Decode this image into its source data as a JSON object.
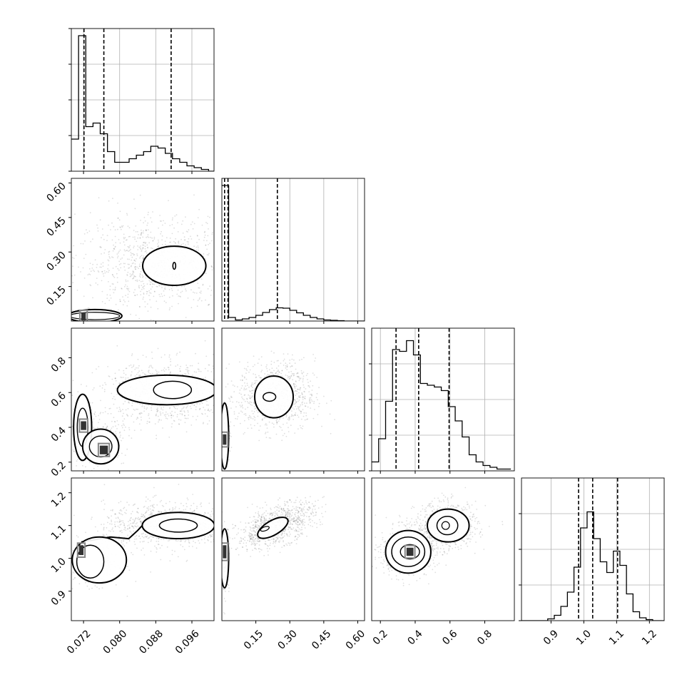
{
  "chart_data": {
    "type": "corner",
    "panels": [
      {
        "id": "hist-0",
        "kind": "hist",
        "row": 0,
        "col": 0,
        "xlim": [
          0.0693,
          0.1009
        ],
        "ylim": [
          0,
          40
        ],
        "ytick_values": [
          0,
          10,
          20,
          30,
          40
        ],
        "grid": true,
        "bin_edges": [
          0.0693,
          0.0709,
          0.0725,
          0.0741,
          0.0757,
          0.0773,
          0.0789,
          0.0805,
          0.0821,
          0.0837,
          0.0853,
          0.0869,
          0.0885,
          0.0901,
          0.0917,
          0.0933,
          0.0949,
          0.0965,
          0.0981,
          0.0997,
          0.1009
        ],
        "counts": [
          9,
          38,
          12.5,
          13.5,
          10.5,
          5.5,
          2.5,
          2.5,
          3.5,
          4.5,
          5.5,
          7,
          6.5,
          5,
          3.5,
          2.5,
          1.5,
          1,
          0.5,
          0
        ],
        "quantiles": [
          0.0721,
          0.0765,
          0.0914
        ]
      },
      {
        "id": "scatter-1-0",
        "kind": "density",
        "row": 1,
        "col": 0,
        "xlim": [
          0.0693,
          0.1009
        ],
        "ylim": [
          0.0,
          0.62
        ],
        "ytick_values": [
          0.15,
          0.3,
          0.45,
          0.6
        ],
        "ytick_labels": [
          "0.15",
          "0.30",
          "0.45",
          "0.60"
        ],
        "clusters": [
          {
            "cx": 0.088,
            "cy": 0.25,
            "sx": 0.0085,
            "sy": 0.1,
            "n": 1000
          },
          {
            "cx": 0.0735,
            "cy": 0.025,
            "sx": 0.0025,
            "sy": 0.012,
            "n": 250
          }
        ],
        "contours": [
          {
            "cx": 0.0921,
            "cy": 0.24,
            "rx": 0.007,
            "ry": 0.085,
            "w": 2
          },
          {
            "cx": 0.0921,
            "cy": 0.24,
            "rx": 0.0001,
            "ry": 0.015,
            "w": 1.6
          },
          {
            "cx": 0.0745,
            "cy": 0.022,
            "rx": 0.006,
            "ry": 0.028,
            "w": 2
          },
          {
            "cx": 0.0745,
            "cy": 0.022,
            "rx": 0.0055,
            "ry": 0.016,
            "w": 1.2
          }
        ],
        "cores": [
          {
            "x": 0.072,
            "y": 0.02,
            "w": 0.001,
            "h": 0.035
          }
        ]
      },
      {
        "id": "hist-1",
        "kind": "hist",
        "row": 1,
        "col": 1,
        "xlim": [
          0.0,
          0.63
        ],
        "ylim": [
          0,
          40
        ],
        "xtick_values": [
          0.15,
          0.3,
          0.45,
          0.6
        ],
        "ytick_values": [],
        "grid": true,
        "bin_edges": [
          0.0,
          0.03,
          0.06,
          0.09,
          0.12,
          0.15,
          0.18,
          0.21,
          0.24,
          0.27,
          0.3,
          0.33,
          0.36,
          0.39,
          0.42,
          0.45,
          0.48,
          0.51,
          0.54,
          0.57,
          0.6,
          0.63
        ],
        "counts": [
          38,
          1,
          0.3,
          0.6,
          1,
          1.6,
          2.4,
          3.2,
          3.7,
          3.6,
          3,
          2.3,
          1.6,
          1,
          0.6,
          0.3,
          0.2,
          0.1,
          0,
          0,
          0
        ],
        "quantiles": [
          0.012,
          0.027,
          0.245
        ]
      },
      {
        "id": "scatter-2-0",
        "kind": "density",
        "row": 2,
        "col": 0,
        "xlim": [
          0.0693,
          0.1009
        ],
        "ylim": [
          0.15,
          0.97
        ],
        "ytick_values": [
          0.2,
          0.4,
          0.6,
          0.8
        ],
        "ytick_labels": [
          "0.2",
          "0.4",
          "0.6",
          "0.8"
        ],
        "clusters": [
          {
            "cx": 0.0905,
            "cy": 0.6,
            "sx": 0.007,
            "sy": 0.09,
            "n": 900
          },
          {
            "cx": 0.075,
            "cy": 0.32,
            "sx": 0.003,
            "sy": 0.07,
            "n": 300
          },
          {
            "cx": 0.072,
            "cy": 0.4,
            "sx": 0.0012,
            "sy": 0.08,
            "n": 200
          }
        ],
        "contours": [
          {
            "cx": 0.0905,
            "cy": 0.615,
            "rx": 0.011,
            "ry": 0.085,
            "w": 2
          },
          {
            "cx": 0.0917,
            "cy": 0.615,
            "rx": 0.0042,
            "ry": 0.05,
            "w": 1.5
          },
          {
            "cx": 0.0718,
            "cy": 0.4,
            "rx": 0.002,
            "ry": 0.19,
            "w": 2
          },
          {
            "cx": 0.0718,
            "cy": 0.4,
            "rx": 0.0012,
            "ry": 0.11,
            "w": 1.4
          },
          {
            "cx": 0.0758,
            "cy": 0.29,
            "rx": 0.004,
            "ry": 0.1,
            "w": 2
          },
          {
            "cx": 0.0758,
            "cy": 0.29,
            "rx": 0.0025,
            "ry": 0.06,
            "w": 1.4
          }
        ],
        "cores": [
          {
            "x": 0.072,
            "y": 0.41,
            "w": 0.0012,
            "h": 0.05
          },
          {
            "x": 0.0765,
            "y": 0.27,
            "w": 0.0018,
            "h": 0.05
          }
        ]
      },
      {
        "id": "scatter-2-1",
        "kind": "density",
        "row": 2,
        "col": 1,
        "xlim": [
          0.0,
          0.63
        ],
        "ylim": [
          0.15,
          0.97
        ],
        "clusters": [
          {
            "cx": 0.24,
            "cy": 0.58,
            "sx": 0.085,
            "sy": 0.1,
            "n": 900
          },
          {
            "cx": 0.015,
            "cy": 0.35,
            "sx": 0.01,
            "sy": 0.08,
            "n": 250
          }
        ],
        "contours": [
          {
            "cx": 0.23,
            "cy": 0.575,
            "rx": 0.085,
            "ry": 0.12,
            "w": 2
          },
          {
            "cx": 0.21,
            "cy": 0.575,
            "rx": 0.028,
            "ry": 0.025,
            "w": 1.5
          },
          {
            "cx": 0.012,
            "cy": 0.35,
            "rx": 0.018,
            "ry": 0.19,
            "w": 2
          }
        ],
        "cores": [
          {
            "x": 0.012,
            "y": 0.33,
            "w": 0.014,
            "h": 0.06
          }
        ]
      },
      {
        "id": "hist-2",
        "kind": "hist",
        "row": 2,
        "col": 2,
        "xlim": [
          0.15,
          0.97
        ],
        "ylim": [
          0,
          40
        ],
        "ytick_values": [
          0,
          10,
          20,
          30
        ],
        "grid": true,
        "bin_edges": [
          0.15,
          0.19,
          0.23,
          0.27,
          0.31,
          0.35,
          0.39,
          0.43,
          0.47,
          0.51,
          0.55,
          0.59,
          0.63,
          0.67,
          0.71,
          0.75,
          0.79,
          0.83,
          0.87,
          0.91,
          0.95
        ],
        "counts": [
          2.5,
          9,
          19.5,
          34,
          33.5,
          36.5,
          32.5,
          24.5,
          24,
          23.5,
          22.5,
          18,
          14,
          9.5,
          4.5,
          2.5,
          1.5,
          1,
          0.5,
          0.5
        ],
        "quantiles": [
          0.29,
          0.42,
          0.595
        ]
      },
      {
        "id": "scatter-3-0",
        "kind": "density",
        "row": 3,
        "col": 0,
        "xlim": [
          0.0693,
          0.1009
        ],
        "ylim": [
          0.81,
          1.245
        ],
        "ytick_values": [
          0.9,
          1.0,
          1.1,
          1.2
        ],
        "ytick_labels": [
          "0.9",
          "1.0",
          "1.1",
          "1.2"
        ],
        "clusters": [
          {
            "cx": 0.0905,
            "cy": 1.1,
            "sx": 0.007,
            "sy": 0.035,
            "n": 900
          },
          {
            "cx": 0.074,
            "cy": 0.99,
            "sx": 0.003,
            "sy": 0.035,
            "n": 350
          }
        ],
        "contours": [
          {
            "cx": 0.093,
            "cy": 1.1,
            "rx": 0.008,
            "ry": 0.04,
            "w": 2
          },
          {
            "cx": 0.093,
            "cy": 1.1,
            "rx": 0.0042,
            "ry": 0.02,
            "w": 1.5
          },
          {
            "cx": 0.0755,
            "cy": 0.995,
            "rx": 0.006,
            "ry": 0.07,
            "w": 2
          },
          {
            "cx": 0.0735,
            "cy": 0.99,
            "rx": 0.003,
            "ry": 0.05,
            "w": 1.5
          }
        ],
        "bridge": [
          [
            0.0715,
            1.05
          ],
          [
            0.078,
            1.065
          ],
          [
            0.082,
            1.06
          ],
          [
            0.084,
            1.085
          ],
          [
            0.085,
            1.1
          ]
        ],
        "cores": [
          {
            "x": 0.0715,
            "y": 1.025,
            "w": 0.001,
            "h": 0.03
          }
        ]
      },
      {
        "id": "scatter-3-1",
        "kind": "density",
        "row": 3,
        "col": 1,
        "xlim": [
          0.0,
          0.63
        ],
        "ylim": [
          0.81,
          1.245
        ],
        "clusters": [
          {
            "cx": 0.24,
            "cy": 1.1,
            "sx": 0.085,
            "sy": 0.035,
            "n": 900,
            "rho": 0.55
          },
          {
            "cx": 0.012,
            "cy": 1.0,
            "sx": 0.01,
            "sy": 0.05,
            "n": 250
          }
        ],
        "contours": [
          {
            "cx": 0.225,
            "cy": 1.093,
            "rx": 0.075,
            "ry": 0.022,
            "w": 2,
            "rot": -30
          },
          {
            "cx": 0.19,
            "cy": 1.09,
            "rx": 0.02,
            "ry": 0.006,
            "w": 1.2,
            "rot": -20
          },
          {
            "cx": 0.012,
            "cy": 1.0,
            "rx": 0.018,
            "ry": 0.09,
            "w": 2
          }
        ],
        "cores": [
          {
            "x": 0.012,
            "y": 1.02,
            "w": 0.014,
            "h": 0.04
          }
        ]
      },
      {
        "id": "scatter-3-2",
        "kind": "density",
        "row": 3,
        "col": 2,
        "xlim": [
          0.15,
          0.97
        ],
        "ylim": [
          0.81,
          1.245
        ],
        "clusters": [
          {
            "cx": 0.58,
            "cy": 1.1,
            "sx": 0.09,
            "sy": 0.035,
            "n": 700
          },
          {
            "cx": 0.36,
            "cy": 1.02,
            "sx": 0.08,
            "sy": 0.035,
            "n": 700
          }
        ],
        "contours": [
          {
            "cx": 0.59,
            "cy": 1.1,
            "rx": 0.12,
            "ry": 0.05,
            "w": 2
          },
          {
            "cx": 0.585,
            "cy": 1.1,
            "rx": 0.06,
            "ry": 0.028,
            "w": 1.5
          },
          {
            "cx": 0.575,
            "cy": 1.1,
            "rx": 0.022,
            "ry": 0.012,
            "w": 1.2
          },
          {
            "cx": 0.36,
            "cy": 1.02,
            "rx": 0.13,
            "ry": 0.065,
            "w": 2
          },
          {
            "cx": 0.36,
            "cy": 1.02,
            "rx": 0.095,
            "ry": 0.045,
            "w": 1.5
          },
          {
            "cx": 0.37,
            "cy": 1.02,
            "rx": 0.055,
            "ry": 0.022,
            "w": 1.4
          }
        ],
        "cores": [
          {
            "x": 0.37,
            "y": 1.02,
            "w": 0.04,
            "h": 0.025
          }
        ]
      },
      {
        "id": "hist-3",
        "kind": "hist",
        "row": 3,
        "col": 3,
        "xlim": [
          0.81,
          1.245
        ],
        "ylim": [
          0,
          40
        ],
        "ytick_values": [
          0,
          10,
          20,
          30
        ],
        "grid": true,
        "bin_edges": [
          0.81,
          0.89,
          0.91,
          0.93,
          0.95,
          0.97,
          0.99,
          1.01,
          1.03,
          1.05,
          1.07,
          1.09,
          1.11,
          1.13,
          1.15,
          1.17,
          1.19,
          1.21,
          1.245
        ],
        "counts": [
          0,
          0.5,
          1.5,
          4,
          8,
          15,
          26,
          30.5,
          23,
          16.5,
          13.5,
          19.5,
          15.5,
          7.5,
          2.5,
          0.8,
          0.3,
          0
        ],
        "quantiles": [
          0.984,
          1.027,
          1.103
        ]
      }
    ],
    "x_axes": [
      {
        "col": 0,
        "ticks": [
          0.072,
          0.08,
          0.088,
          0.096
        ],
        "labels": [
          "0.072",
          "0.080",
          "0.088",
          "0.096"
        ]
      },
      {
        "col": 1,
        "ticks": [
          0.15,
          0.3,
          0.45,
          0.6
        ],
        "labels": [
          "0.15",
          "0.30",
          "0.45",
          "0.60"
        ]
      },
      {
        "col": 2,
        "ticks": [
          0.2,
          0.4,
          0.6,
          0.8
        ],
        "labels": [
          "0.2",
          "0.4",
          "0.6",
          "0.8"
        ]
      },
      {
        "col": 3,
        "ticks": [
          0.9,
          1.0,
          1.1,
          1.2
        ],
        "labels": [
          "0.9",
          "1.0",
          "1.1",
          "1.2"
        ]
      }
    ]
  }
}
